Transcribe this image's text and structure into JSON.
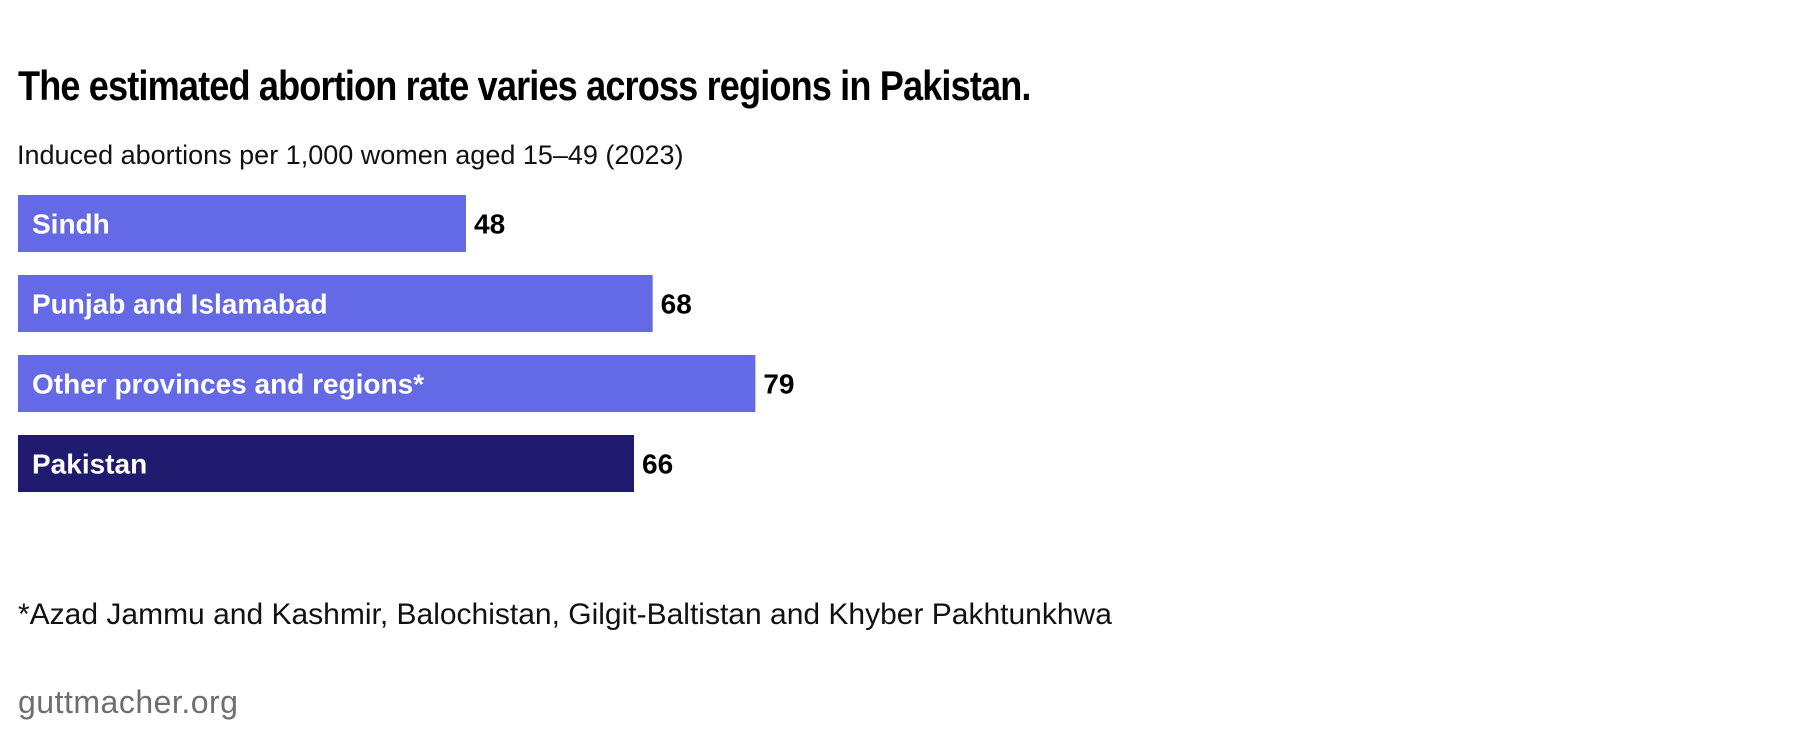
{
  "title": "The estimated abortion rate varies across regions in Pakistan.",
  "subtitle": "Induced abortions per 1,000 women aged 15–49 (2023)",
  "footnote": "*Azad Jammu and Kashmir, Balochistan, Gilgit-Baltistan and Khyber Pakhtunkhwa",
  "source": "guttmacher.org",
  "colors": {
    "region_bar": "#6469e6",
    "total_bar": "#1f1b6e",
    "bar_label": "#ffffff",
    "value_label": "#000000"
  },
  "chart_data": {
    "type": "bar",
    "orientation": "horizontal",
    "title": "The estimated abortion rate varies across regions in Pakistan.",
    "subtitle": "Induced abortions per 1,000 women aged 15–49 (2023)",
    "xlabel": "",
    "ylabel": "",
    "categories": [
      "Sindh",
      "Punjab and Islamabad",
      "Other provinces and regions*",
      "Pakistan"
    ],
    "values": [
      48,
      68,
      79,
      66
    ],
    "highlight": [
      false,
      false,
      false,
      true
    ],
    "xlim": [
      0,
      165
    ],
    "grid": false,
    "legend": "none",
    "data_labels": true
  }
}
